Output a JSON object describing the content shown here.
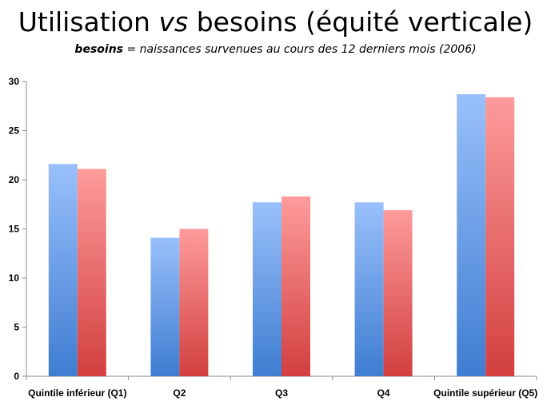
{
  "title": {
    "part1": "Utilisation ",
    "part2": "vs",
    "part3": " besoins (équité verticale)"
  },
  "subtitle": {
    "bold": "besoins",
    "rest": " = naissances survenues au cours des 12 derniers mois (2006)"
  },
  "chart_data": {
    "type": "bar",
    "categories": [
      "Quintile inférieur (Q1)",
      "Q2",
      "Q3",
      "Q4",
      "Quintile supérieur (Q5)"
    ],
    "series": [
      {
        "values": [
          21.6,
          14.1,
          17.7,
          17.7,
          28.7
        ],
        "color": "#4a86d8"
      },
      {
        "values": [
          21.1,
          15.0,
          18.3,
          16.9,
          28.4
        ],
        "color": "#d94848"
      }
    ],
    "ylim": [
      0,
      30
    ],
    "yticks": [
      0,
      5,
      10,
      15,
      20,
      25,
      30
    ],
    "grid": false,
    "legend": "none"
  }
}
